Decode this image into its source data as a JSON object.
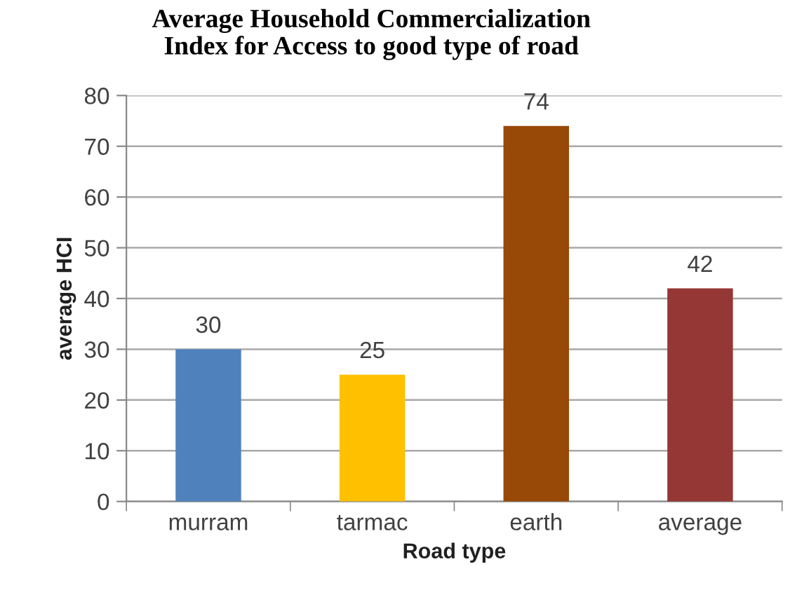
{
  "chart_data": {
    "type": "bar",
    "title": "Average Household Commercialization\nIndex for Access to good type of road",
    "xlabel": "Road type",
    "ylabel": "average HCI",
    "categories": [
      "murram",
      "tarmac",
      "earth",
      "average"
    ],
    "values": [
      30,
      25,
      74,
      42
    ],
    "colors": [
      "#4f81bd",
      "#ffc000",
      "#984807",
      "#953735"
    ],
    "ylim": [
      0,
      80
    ],
    "yticks": [
      0,
      10,
      20,
      30,
      40,
      50,
      60,
      70,
      80
    ],
    "grid": "y",
    "data_labels": true
  }
}
